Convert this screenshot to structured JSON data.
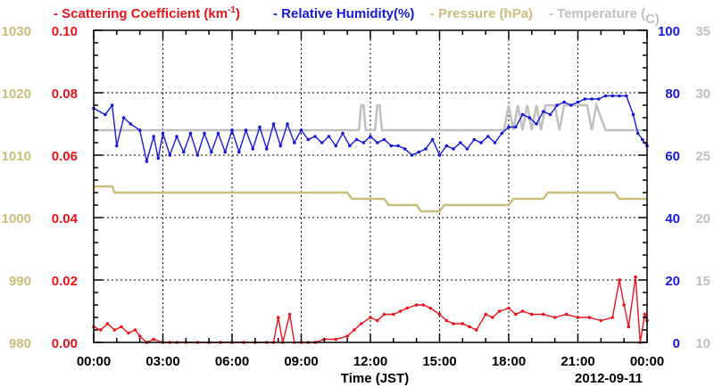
{
  "chart_data": {
    "type": "line",
    "title": "",
    "xlabel": "Time (JST)",
    "date_label": "2012-09-11",
    "x_ticks": [
      "00:00",
      "03:00",
      "06:00",
      "09:00",
      "12:00",
      "15:00",
      "18:00",
      "21:00",
      "00:00"
    ],
    "x_range_hours": [
      0,
      24
    ],
    "grid": true,
    "legend": [
      {
        "text": "- Scattering Coefficient (km",
        "sup": "-1",
        "tail": ")",
        "color": "#e8141b"
      },
      {
        "text": "- Relative Humidity(%)",
        "color": "#1818d8"
      },
      {
        "text": "- Pressure (hPa)",
        "color": "#c8bd7a"
      },
      {
        "text": "- Temperature (",
        "sup": "",
        "tail": "C)",
        "color": "#c0c0c0"
      }
    ],
    "axes": {
      "pressure": {
        "label": "Pressure (hPa)",
        "range": [
          980,
          1030
        ],
        "ticks": [
          "980",
          "990",
          "1000",
          "1010",
          "1020",
          "1030"
        ],
        "color": "#c8bd7a"
      },
      "scattering": {
        "label": "Scattering Coefficient (km-1)",
        "range": [
          0,
          0.1
        ],
        "ticks": [
          "0.00",
          "0.02",
          "0.04",
          "0.06",
          "0.08",
          "0.10"
        ],
        "color": "#e8141b"
      },
      "humidity": {
        "label": "Relative Humidity(%)",
        "range": [
          0,
          100
        ],
        "ticks": [
          "0",
          "20",
          "40",
          "60",
          "80",
          "100"
        ],
        "color": "#1818d8"
      },
      "temperature": {
        "label": "Temperature (C)",
        "range": [
          10,
          35
        ],
        "ticks": [
          "10",
          "15",
          "20",
          "25",
          "30",
          "35"
        ],
        "color": "#c0c0c0"
      }
    },
    "series": [
      {
        "name": "Relative Humidity(%)",
        "axis": "humidity",
        "color": "#1818d8",
        "x": [
          0,
          0.5,
          0.8,
          1.0,
          1.3,
          1.6,
          2.0,
          2.3,
          2.6,
          2.8,
          3.0,
          3.3,
          3.6,
          3.9,
          4.2,
          4.5,
          4.8,
          5.1,
          5.4,
          5.7,
          6.0,
          6.3,
          6.6,
          6.9,
          7.2,
          7.5,
          7.8,
          8.1,
          8.4,
          8.7,
          9.0,
          9.3,
          9.6,
          9.9,
          10.2,
          10.5,
          10.8,
          11.1,
          11.4,
          11.7,
          12.0,
          12.3,
          12.6,
          12.9,
          13.2,
          13.5,
          13.8,
          14.1,
          14.4,
          14.7,
          15.0,
          15.3,
          15.6,
          15.9,
          16.2,
          16.5,
          16.8,
          17.1,
          17.4,
          17.7,
          18.0,
          18.3,
          18.6,
          18.9,
          19.2,
          19.5,
          19.8,
          20.1,
          20.4,
          20.7,
          21.0,
          21.3,
          21.6,
          21.9,
          22.2,
          22.5,
          22.8,
          23.1,
          23.4,
          23.6,
          23.8,
          24.0
        ],
        "values": [
          75,
          73,
          76,
          63,
          72,
          70,
          68,
          58,
          66,
          59,
          67,
          60,
          66,
          61,
          67,
          60,
          67,
          61,
          67,
          61,
          68,
          61,
          68,
          62,
          69,
          62,
          70,
          63,
          70,
          64,
          68,
          65,
          66,
          64,
          66,
          63,
          67,
          63,
          65,
          64,
          66,
          64,
          65,
          63,
          63,
          62,
          60,
          61,
          62,
          65,
          60,
          63,
          62,
          64,
          62,
          65,
          64,
          66,
          64,
          67,
          69,
          69,
          73,
          72,
          70,
          74,
          73,
          76,
          77,
          76,
          77,
          78,
          78,
          78,
          79,
          79,
          79,
          79,
          73,
          67,
          65,
          63
        ]
      },
      {
        "name": "Scattering Coefficient (km-1)",
        "axis": "scattering",
        "color": "#e8141b",
        "x": [
          0,
          0.3,
          0.6,
          0.9,
          1.2,
          1.5,
          1.8,
          2.0,
          2.3,
          2.6,
          3.0,
          3.3,
          3.6,
          4.0,
          4.5,
          5.0,
          5.5,
          6.0,
          6.5,
          7.0,
          7.5,
          7.8,
          8.0,
          8.2,
          8.5,
          8.7,
          9.0,
          9.3,
          9.6,
          10.0,
          10.5,
          11.0,
          11.3,
          11.6,
          12.0,
          12.3,
          12.6,
          13.0,
          13.3,
          13.6,
          14.0,
          14.3,
          14.6,
          15.0,
          15.3,
          15.6,
          16.0,
          16.3,
          16.6,
          17.0,
          17.3,
          17.6,
          18.0,
          18.3,
          18.6,
          19.0,
          19.5,
          20.0,
          20.5,
          21.0,
          21.5,
          22.0,
          22.5,
          22.8,
          23.0,
          23.2,
          23.5,
          23.7,
          23.9,
          24.0
        ],
        "values": [
          0.005,
          0.004,
          0.006,
          0.004,
          0.005,
          0.003,
          0.004,
          0.002,
          0.0,
          0.001,
          0.0,
          0.0,
          0.0,
          0.0,
          0.0,
          0.0,
          0.0,
          0.0,
          0.0,
          0.0,
          0.0,
          0.0,
          0.008,
          0.0,
          0.009,
          0.0,
          0.0,
          0.0,
          0.0,
          0.001,
          0.001,
          0.002,
          0.004,
          0.006,
          0.008,
          0.007,
          0.009,
          0.009,
          0.01,
          0.011,
          0.012,
          0.012,
          0.011,
          0.009,
          0.007,
          0.006,
          0.006,
          0.005,
          0.004,
          0.009,
          0.008,
          0.01,
          0.011,
          0.009,
          0.01,
          0.009,
          0.009,
          0.008,
          0.009,
          0.008,
          0.008,
          0.007,
          0.008,
          0.02,
          0.012,
          0.005,
          0.021,
          0.0,
          0.009,
          0.007
        ]
      },
      {
        "name": "Pressure (hPa)",
        "axis": "pressure",
        "color": "#c8bd7a",
        "x": [
          0,
          0.8,
          0.9,
          7.8,
          8.0,
          11.0,
          11.2,
          11.8,
          12.0,
          12.6,
          12.8,
          14.0,
          14.2,
          15.0,
          15.2,
          18.0,
          18.2,
          19.5,
          19.7,
          22.6,
          22.8,
          24.0
        ],
        "values": [
          1005,
          1005,
          1004,
          1004,
          1004,
          1004,
          1003,
          1003,
          1003,
          1003,
          1002,
          1002,
          1001,
          1001,
          1002,
          1002,
          1003,
          1003,
          1004,
          1004,
          1003,
          1003
        ]
      },
      {
        "name": "Temperature (C)",
        "axis": "temperature",
        "color": "#c0c0c0",
        "x": [
          0,
          11.5,
          11.6,
          11.7,
          11.8,
          12.2,
          12.3,
          12.4,
          12.5,
          12.6,
          12.8,
          17.8,
          18.0,
          18.2,
          18.4,
          18.6,
          18.8,
          19.0,
          19.2,
          19.4,
          19.6,
          20.0,
          20.2,
          20.4,
          20.6,
          21.0,
          21.4,
          21.6,
          21.8,
          22.2,
          22.5,
          23.0,
          23.5,
          24.0
        ],
        "values": [
          27,
          27,
          29,
          29,
          27,
          27,
          29,
          29,
          27,
          27,
          27,
          27,
          29,
          27,
          29,
          27,
          29,
          27,
          29,
          27,
          29,
          29,
          27,
          29,
          29,
          29,
          29,
          27,
          29,
          27,
          27,
          27,
          27,
          27
        ]
      }
    ]
  }
}
